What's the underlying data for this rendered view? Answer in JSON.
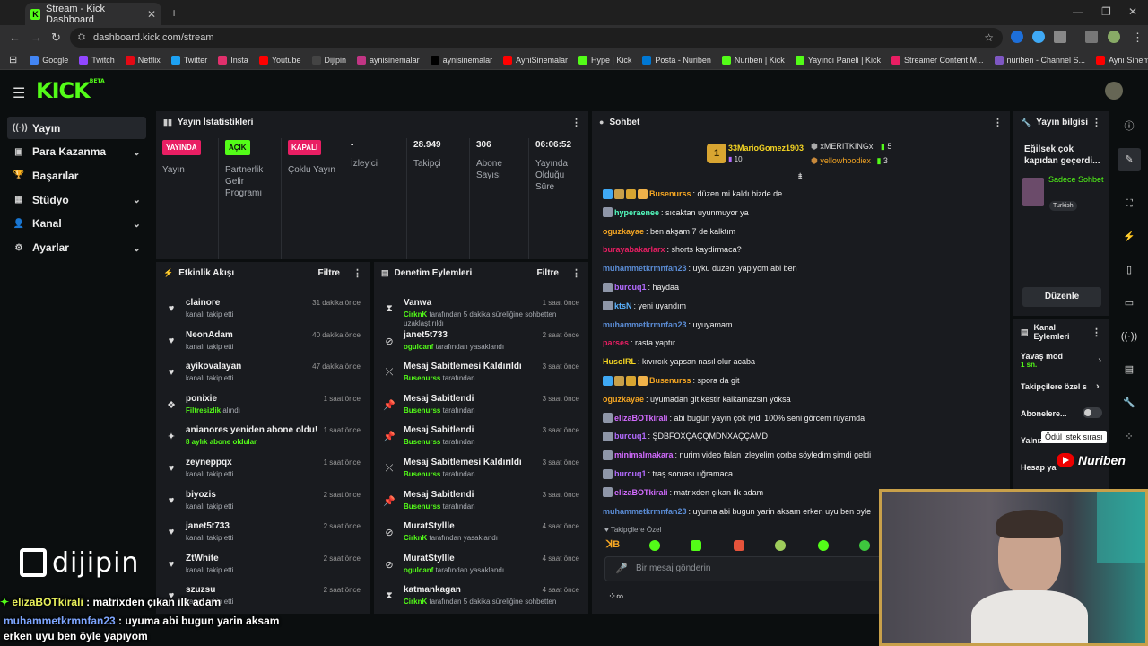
{
  "browser": {
    "tab_title": "Stream - Kick Dashboard",
    "url": "dashboard.kick.com/stream",
    "bookmarks": [
      {
        "label": "Google",
        "color": "#4285f4"
      },
      {
        "label": "Twitch",
        "color": "#9146ff"
      },
      {
        "label": "Netflix",
        "color": "#e50914"
      },
      {
        "label": "Twitter",
        "color": "#1da1f2"
      },
      {
        "label": "Insta",
        "color": "#e1306c"
      },
      {
        "label": "Youtube",
        "color": "#ff0000"
      },
      {
        "label": "Dijipin",
        "color": "#444444"
      },
      {
        "label": "aynisinemalar",
        "color": "#c13584"
      },
      {
        "label": "aynisinemalar",
        "color": "#000000"
      },
      {
        "label": "AyniSinemalar",
        "color": "#ff0000"
      },
      {
        "label": "Hype | Kick",
        "color": "#53fc18"
      },
      {
        "label": "Posta - Nuriben",
        "color": "#0078d4"
      },
      {
        "label": "Nuriben | Kick",
        "color": "#53fc18"
      },
      {
        "label": "Yayıncı Paneli | Kick",
        "color": "#53fc18"
      },
      {
        "label": "Streamer Content M...",
        "color": "#e91e63"
      },
      {
        "label": "nuriben - Channel S...",
        "color": "#7e57c2"
      },
      {
        "label": "Aynı Sinemalar - Ça...",
        "color": "#ff0000"
      }
    ]
  },
  "kick": {
    "logo": "KICK",
    "beta": "BETA"
  },
  "sidebar": {
    "items": [
      {
        "label": "Yayın",
        "icon": "broadcast-icon",
        "glyph": "((·))",
        "chevron": false,
        "active": true
      },
      {
        "label": "Para Kazanma",
        "icon": "money-icon",
        "glyph": "▣",
        "chevron": true,
        "active": false
      },
      {
        "label": "Başarılar",
        "icon": "trophy-icon",
        "glyph": "🏆",
        "chevron": false,
        "active": false
      },
      {
        "label": "Stüdyo",
        "icon": "studio-icon",
        "glyph": "▦",
        "chevron": true,
        "active": false
      },
      {
        "label": "Kanal",
        "icon": "user-icon",
        "glyph": "👤",
        "chevron": true,
        "active": false
      },
      {
        "label": "Ayarlar",
        "icon": "gear-icon",
        "glyph": "⚙",
        "chevron": true,
        "active": false
      }
    ],
    "brand_overlay": "dijipin"
  },
  "stats": {
    "title": "Yayın İstatistikleri",
    "items": [
      {
        "badge": "YAYINDA",
        "badge_color": "#e91e63",
        "label": "Yayın"
      },
      {
        "badge": "AÇIK",
        "badge_color": "#53fc18",
        "label": "Partnerlik Gelir Programı"
      },
      {
        "badge": "KAPALI",
        "badge_color": "#e91e63",
        "label": "Çoklu Yayın"
      },
      {
        "value": "-",
        "label": "İzleyici"
      },
      {
        "value": "28.949",
        "label": "Takipçi"
      },
      {
        "value": "306",
        "label": "Abone Sayısı"
      },
      {
        "value": "06:06:52",
        "label": "Yayında Olduğu Süre"
      }
    ]
  },
  "activity": {
    "title": "Etkinlik Akışı",
    "filter": "Filtre",
    "items": [
      {
        "icon": "heart-icon",
        "glyph": "♥",
        "name": "clainore",
        "sub": "kanalı takip etti",
        "time": "31 dakika önce"
      },
      {
        "icon": "heart-icon",
        "glyph": "♥",
        "name": "NeonAdam",
        "sub": "kanalı takip etti",
        "time": "40 dakika önce"
      },
      {
        "icon": "heart-icon",
        "glyph": "♥",
        "name": "ayikovalayan",
        "sub": "kanalı takip etti",
        "time": "47 dakika önce"
      },
      {
        "icon": "gift-icon",
        "glyph": "❖",
        "name": "ponixie",
        "sub_green": "Filtresizlik",
        "sub": " alındı",
        "time": "1 saat önce"
      },
      {
        "icon": "sparkle-icon",
        "glyph": "✦",
        "name": "anianores yeniden abone oldu!",
        "sub_green": "8 aylık abone oldular",
        "sub": "",
        "time": "1 saat önce"
      },
      {
        "icon": "heart-icon",
        "glyph": "♥",
        "name": "zeyneppqx",
        "sub": "kanalı takip etti",
        "time": "1 saat önce"
      },
      {
        "icon": "heart-icon",
        "glyph": "♥",
        "name": "biyozis",
        "sub": "kanalı takip etti",
        "time": "2 saat önce"
      },
      {
        "icon": "heart-icon",
        "glyph": "♥",
        "name": "janet5t733",
        "sub": "kanalı takip etti",
        "time": "2 saat önce"
      },
      {
        "icon": "heart-icon",
        "glyph": "♥",
        "name": "ZtWhite",
        "sub": "kanalı takip etti",
        "time": "2 saat önce"
      },
      {
        "icon": "heart-icon",
        "glyph": "♥",
        "name": "szuzsu",
        "sub": "kanalı takip etti",
        "time": "2 saat önce"
      }
    ]
  },
  "moderation": {
    "title": "Denetim Eylemleri",
    "filter": "Filtre",
    "items": [
      {
        "icon": "hourglass-icon",
        "glyph": "⧗",
        "name": "Vanwa",
        "sub_green": "CirknK",
        "sub": " tarafından 5 dakika süreliğine sohbetten uzaklaştırıldı",
        "time": "1 saat önce"
      },
      {
        "icon": "ban-icon",
        "glyph": "⊘",
        "name": "janet5t733",
        "sub_green": "ogulcanf",
        "sub": " tarafından yasaklandı",
        "time": "2 saat önce"
      },
      {
        "icon": "unpin-icon",
        "glyph": "⤫",
        "name": "Mesaj Sabitlemesi Kaldırıldı",
        "sub_green": "Busenurss",
        "sub": " tarafından",
        "time": "3 saat önce"
      },
      {
        "icon": "pin-icon",
        "glyph": "📌",
        "name": "Mesaj Sabitlendi",
        "sub_green": "Busenurss",
        "sub": " tarafından",
        "time": "3 saat önce"
      },
      {
        "icon": "pin-icon",
        "glyph": "📌",
        "name": "Mesaj Sabitlendi",
        "sub_green": "Busenurss",
        "sub": " tarafından",
        "time": "3 saat önce"
      },
      {
        "icon": "unpin-icon",
        "glyph": "⤫",
        "name": "Mesaj Sabitlemesi Kaldırıldı",
        "sub_green": "Busenurss",
        "sub": " tarafından",
        "time": "3 saat önce"
      },
      {
        "icon": "pin-icon",
        "glyph": "📌",
        "name": "Mesaj Sabitlendi",
        "sub_green": "Busenurss",
        "sub": " tarafından",
        "time": "3 saat önce"
      },
      {
        "icon": "ban-icon",
        "glyph": "⊘",
        "name": "MuratStyllle",
        "sub_green": "CirknK",
        "sub": " tarafından yasaklandı",
        "time": "4 saat önce"
      },
      {
        "icon": "ban-icon",
        "glyph": "⊘",
        "name": "MuratStyllle",
        "sub_green": "ogulcanf",
        "sub": " tarafından yasaklandı",
        "time": "4 saat önce"
      },
      {
        "icon": "hourglass-icon",
        "glyph": "⧗",
        "name": "katmankagan",
        "sub_green": "CirknK",
        "sub": " tarafından 5 dakika süreliğine sohbetten",
        "time": "4 saat önce"
      }
    ]
  },
  "chat": {
    "title": "Sohbet",
    "top_gifters": [
      {
        "name": "33MarioGomez1903",
        "count": "10",
        "rank": "1"
      },
      {
        "name": "xMERITKINGx",
        "count": "5"
      },
      {
        "name": "yellowhoodiex",
        "count": "3"
      }
    ],
    "messages": [
      {
        "user": "Busenurss",
        "color": "#f5a623",
        "badges": 4,
        "text": ": düzen mi kaldı bizde de"
      },
      {
        "user": "hyperaenee",
        "color": "#53fcbf",
        "badges": 1,
        "text": ": sıcaktan uyunmuyor ya"
      },
      {
        "user": "oguzkayae",
        "color": "#f5a623",
        "badges": 0,
        "text": ": ben akşam 7 de kalktım"
      },
      {
        "user": "burayabakarlarx",
        "color": "#e91e63",
        "badges": 0,
        "text": ": shorts kaydirmaca?"
      },
      {
        "user": "muhammetkrmnfan23",
        "color": "#5b8dd6",
        "badges": 0,
        "text": ": uyku duzeni yapiyom abi ben"
      },
      {
        "user": "burcuq1",
        "color": "#b36bff",
        "badges": 1,
        "text": ": haydaa"
      },
      {
        "user": "ktsN",
        "color": "#5bb3ff",
        "badges": 1,
        "text": ": yeni uyandım"
      },
      {
        "user": "muhammetkrmnfan23",
        "color": "#5b8dd6",
        "badges": 0,
        "text": ": uyuyamam"
      },
      {
        "user": "parses",
        "color": "#e91e63",
        "badges": 0,
        "text": ": rasta yaptır"
      },
      {
        "user": "HusoIRL",
        "color": "#f5d523",
        "badges": 0,
        "text": ": kıvırcık yapsan nasıl olur acaba"
      },
      {
        "user": "Busenurss",
        "color": "#f5a623",
        "badges": 4,
        "text": ": spora da git"
      },
      {
        "user": "oguzkayae",
        "color": "#f5a623",
        "badges": 0,
        "text": ": uyumadan git kestir kalkamazsın yoksa"
      },
      {
        "user": "elizaBOTkirali",
        "color": "#d36bff",
        "badges": 1,
        "text": ": abi bugün yayın çok iyidi 100% seni görcem rüyamda"
      },
      {
        "user": "burcuq1",
        "color": "#b36bff",
        "badges": 1,
        "text": ": ŞDBFÖXÇAÇQMDNXAÇÇAMD"
      },
      {
        "user": "minimalmakara",
        "color": "#d36bff",
        "badges": 1,
        "text": ": nurim video falan izleyelim çorba söyledim şimdi geldi"
      },
      {
        "user": "burcuq1",
        "color": "#b36bff",
        "badges": 1,
        "text": ": traş sonrası uğramaca"
      },
      {
        "user": "elizaBOTkirali",
        "color": "#d36bff",
        "badges": 1,
        "text": ": matrixden çıkan ilk adam"
      },
      {
        "user": "muhammetkrmnfan23",
        "color": "#5b8dd6",
        "badges": 0,
        "text": ": uyuma abi bugun yarin aksam erken uyu ben oyle"
      }
    ],
    "followers_only": "Takipçilere Özel",
    "input_placeholder": "Bir mesaj gönderin"
  },
  "stream_info": {
    "title": "Yayın bilgisi",
    "stream_title": "Eğilsek çok kapıdan geçerdi...",
    "category": "Sadece Sohbet",
    "tag": "Turkish",
    "edit_button": "Düzenle"
  },
  "channel_actions": {
    "title": "Kanal Eylemleri",
    "slow_mode": "Yavaş mod",
    "slow_mode_value": "1 sn.",
    "followers_only": "Takipçilere özel s",
    "subscribers": "Abonelere...",
    "only": "Yalnız",
    "account": "Hesap ya",
    "tooltip": "Ödül istek sırası"
  },
  "overlay": {
    "line1_user": "elizaBOTkirali",
    "line1_text": " : matrixden çıkan ilk adam",
    "line2_user": "muhammetkrmnfan23",
    "line2_text": " : uyuma abi bugun yarin aksam",
    "line3_text": "erken uyu ben öyle yapıyom",
    "brand": "Nuriben"
  }
}
